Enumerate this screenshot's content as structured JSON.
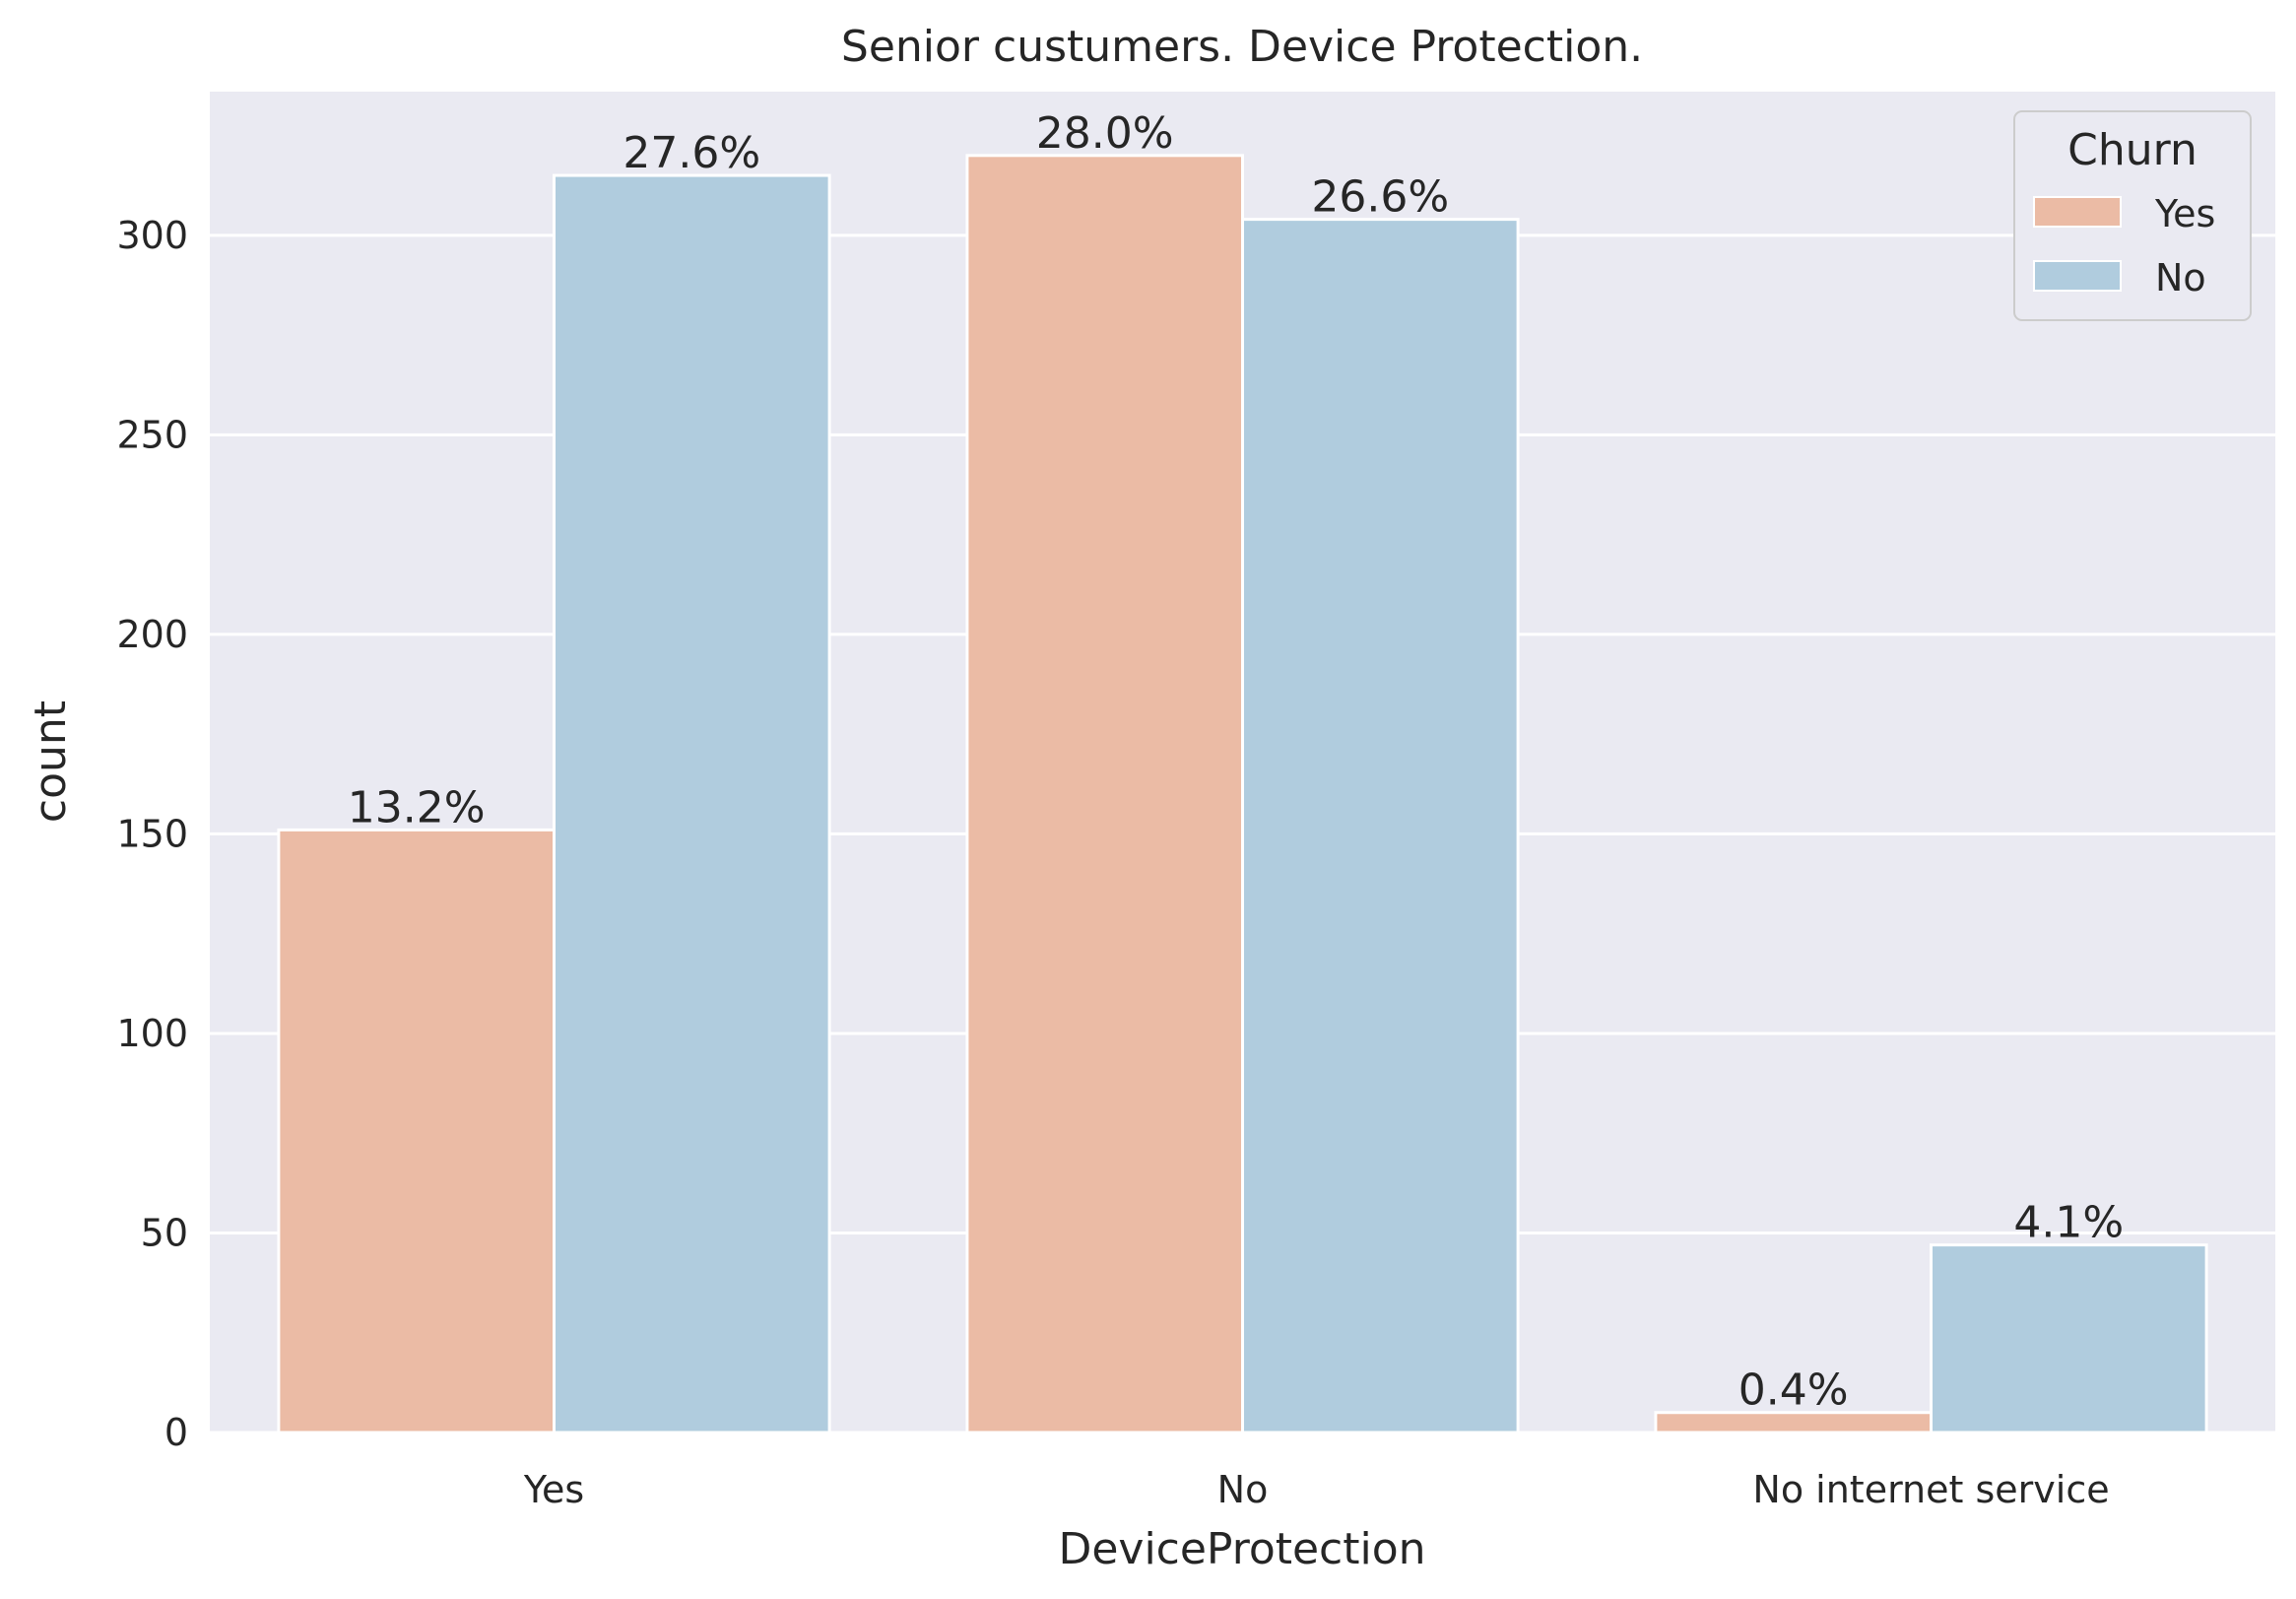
{
  "chart_data": {
    "type": "bar",
    "title": "Senior custumers. Device Protection.",
    "xlabel": "DeviceProtection",
    "ylabel": "count",
    "categories": [
      "Yes",
      "No",
      "No internet service"
    ],
    "series": [
      {
        "name": "Yes",
        "color": "#ebbba5",
        "values": [
          151,
          320,
          5
        ],
        "labels": [
          "13.2%",
          "28.0%",
          "0.4%"
        ]
      },
      {
        "name": "No",
        "color": "#b0ccde",
        "values": [
          315,
          304,
          47
        ],
        "labels": [
          "27.6%",
          "26.6%",
          "4.1%"
        ]
      }
    ],
    "yticks": [
      0,
      50,
      100,
      150,
      200,
      250,
      300
    ],
    "ylim": [
      0,
      336
    ],
    "grid": true,
    "legend": {
      "title": "Churn",
      "position": "top-right"
    },
    "colors": {
      "plot_background": "#eaeaf2",
      "gridline": "#ffffff",
      "text": "#262626"
    }
  }
}
